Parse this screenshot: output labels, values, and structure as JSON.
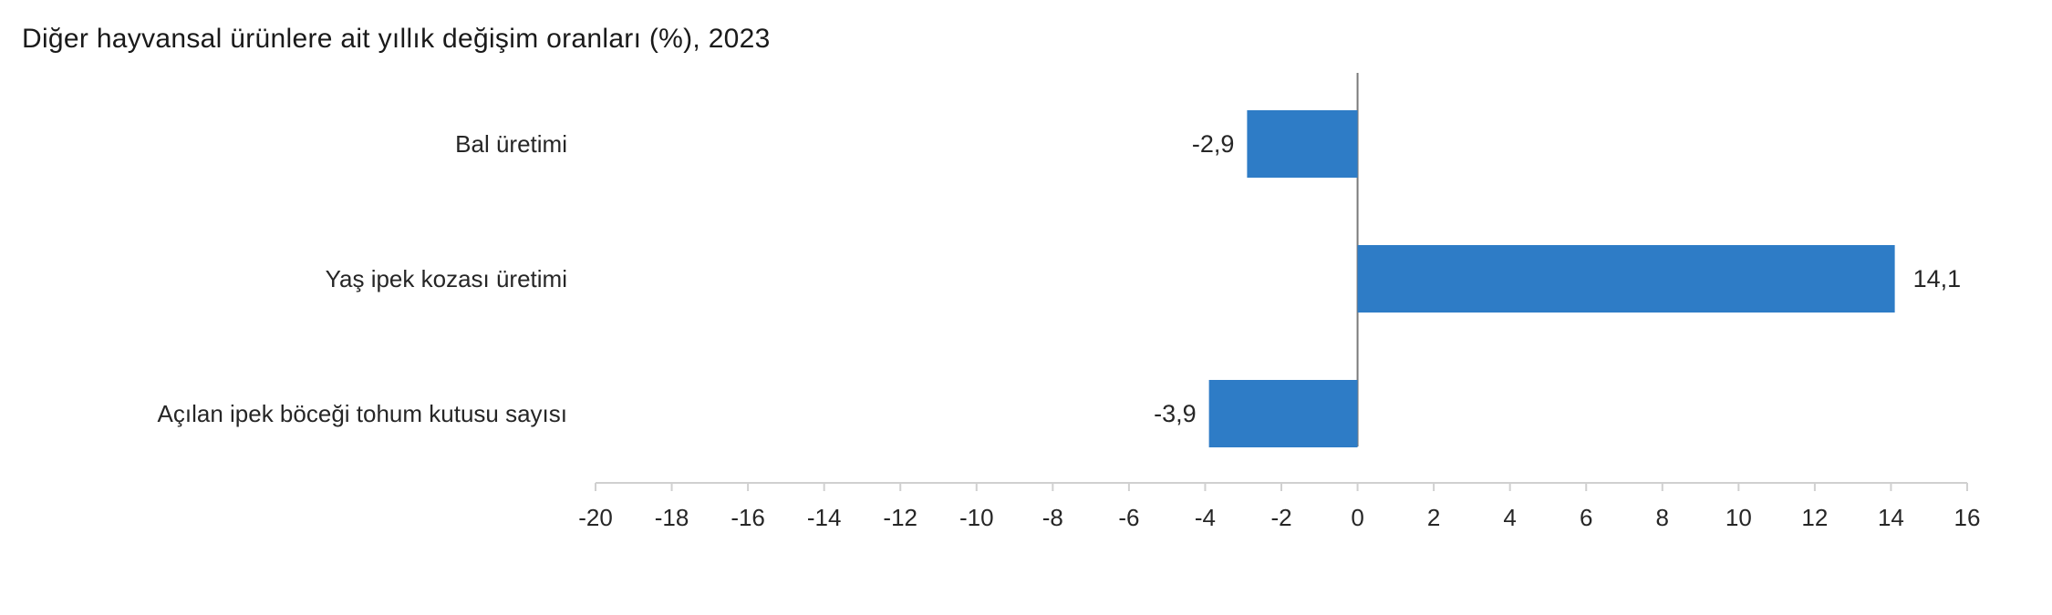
{
  "title": "Diğer hayvansal ürünlere ait yıllık değişim oranları (%), 2023",
  "chart_data": {
    "type": "bar",
    "orientation": "horizontal",
    "title": "Diğer hayvansal ürünlere ait yıllık değişim oranları (%), 2023",
    "categories": [
      "Bal üretimi",
      "Yaş ipek kozası üretimi",
      "Açılan ipek böceği tohum kutusu sayısı"
    ],
    "values": [
      -2.9,
      14.1,
      -3.9
    ],
    "data_labels": [
      "-2,9",
      "14,1",
      "-3,9"
    ],
    "xlim": [
      -20,
      16
    ],
    "x_ticks": [
      -20,
      -18,
      -16,
      -14,
      -12,
      -10,
      -8,
      -6,
      -4,
      -2,
      0,
      2,
      4,
      6,
      8,
      10,
      12,
      14,
      16
    ],
    "xlabel": "",
    "ylabel": "",
    "grid": false,
    "legend": "none",
    "bar_color": "#2e7cc6"
  }
}
